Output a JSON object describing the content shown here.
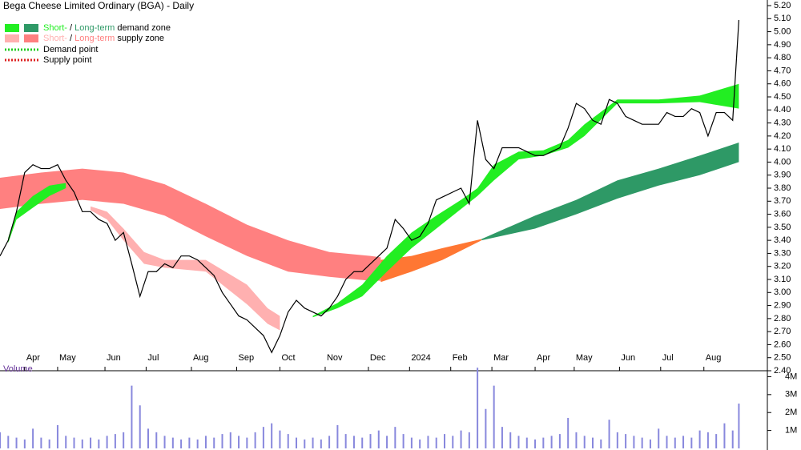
{
  "chart_data": {
    "type": "line",
    "title": "Bega Cheese Limited Ordinary (BGA) - Daily",
    "legend": {
      "demand": {
        "short": "Short-",
        "sep": " / ",
        "long": "Long-term",
        "rest": " demand zone",
        "color_short": "#22ee22",
        "color_long": "#2e9966"
      },
      "supply": {
        "short": "Short-",
        "sep": " / ",
        "long": "Long-term",
        "rest": " supply zone",
        "color_short": "#ffb0b0",
        "color_long": "#ff8080"
      },
      "demand_point": {
        "label": "Demand point",
        "color": "#22cc22"
      },
      "supply_point": {
        "label": "Supply point",
        "color": "#dd2222"
      }
    },
    "xlim": [
      0,
      360
    ],
    "xticks": [
      {
        "value": 12,
        "label": "Apr"
      },
      {
        "value": 28,
        "label": "May"
      },
      {
        "value": 51,
        "label": "Jun"
      },
      {
        "value": 71,
        "label": "Jul"
      },
      {
        "value": 93,
        "label": "Aug"
      },
      {
        "value": 115,
        "label": "Sep"
      },
      {
        "value": 136,
        "label": "Oct"
      },
      {
        "value": 158,
        "label": "Nov"
      },
      {
        "value": 179,
        "label": "Dec"
      },
      {
        "value": 199,
        "label": "2024"
      },
      {
        "value": 219,
        "label": "Feb"
      },
      {
        "value": 239,
        "label": "Mar"
      },
      {
        "value": 260,
        "label": "Apr"
      },
      {
        "value": 279,
        "label": "May"
      },
      {
        "value": 301,
        "label": "Jun"
      },
      {
        "value": 321,
        "label": "Jul"
      },
      {
        "value": 342,
        "label": "Aug"
      }
    ],
    "ylim": [
      2.4,
      5.2
    ],
    "yticks": [
      {
        "value": 2.4,
        "label": "2.40"
      },
      {
        "value": 2.5,
        "label": "2.50"
      },
      {
        "value": 2.6,
        "label": "2.60"
      },
      {
        "value": 2.7,
        "label": "2.70"
      },
      {
        "value": 2.8,
        "label": "2.80"
      },
      {
        "value": 2.9,
        "label": "2.90"
      },
      {
        "value": 3.0,
        "label": "3.00"
      },
      {
        "value": 3.1,
        "label": "3.10"
      },
      {
        "value": 3.2,
        "label": "3.20"
      },
      {
        "value": 3.3,
        "label": "3.30"
      },
      {
        "value": 3.4,
        "label": "3.40"
      },
      {
        "value": 3.5,
        "label": "3.50"
      },
      {
        "value": 3.6,
        "label": "3.60"
      },
      {
        "value": 3.7,
        "label": "3.70"
      },
      {
        "value": 3.8,
        "label": "3.80"
      },
      {
        "value": 3.9,
        "label": "3.90"
      },
      {
        "value": 4.0,
        "label": "4.00"
      },
      {
        "value": 4.1,
        "label": "4.10"
      },
      {
        "value": 4.2,
        "label": "4.20"
      },
      {
        "value": 4.3,
        "label": "4.30"
      },
      {
        "value": 4.4,
        "label": "4.40"
      },
      {
        "value": 4.5,
        "label": "4.50"
      },
      {
        "value": 4.6,
        "label": "4.60"
      },
      {
        "value": 4.7,
        "label": "4.70"
      },
      {
        "value": 4.8,
        "label": "4.80"
      },
      {
        "value": 4.9,
        "label": "4.90"
      },
      {
        "value": 5.0,
        "label": "5.00"
      },
      {
        "value": 5.1,
        "label": "5.10"
      },
      {
        "value": 5.2,
        "label": "5.20"
      }
    ],
    "x": [
      0,
      4,
      8,
      12,
      16,
      20,
      24,
      28,
      32,
      36,
      40,
      44,
      48,
      52,
      56,
      60,
      64,
      68,
      72,
      76,
      80,
      84,
      88,
      92,
      96,
      100,
      104,
      108,
      112,
      116,
      120,
      124,
      128,
      132,
      136,
      140,
      144,
      148,
      152,
      156,
      160,
      164,
      168,
      172,
      176,
      180,
      184,
      188,
      192,
      196,
      200,
      204,
      208,
      212,
      216,
      220,
      224,
      228,
      232,
      236,
      240,
      244,
      248,
      252,
      256,
      260,
      264,
      268,
      272,
      276,
      280,
      284,
      288,
      292,
      296,
      300,
      304,
      308,
      312,
      316,
      320,
      324,
      328,
      332,
      336,
      340,
      344,
      348,
      352,
      356,
      359
    ],
    "price": {
      "color": "#000000",
      "values": [
        3.28,
        3.4,
        3.62,
        3.92,
        3.98,
        3.95,
        3.95,
        3.98,
        3.86,
        3.77,
        3.62,
        3.62,
        3.56,
        3.53,
        3.4,
        3.46,
        3.22,
        2.97,
        3.16,
        3.16,
        3.22,
        3.19,
        3.28,
        3.28,
        3.25,
        3.19,
        3.13,
        3.0,
        2.91,
        2.82,
        2.79,
        2.73,
        2.67,
        2.54,
        2.67,
        2.85,
        2.94,
        2.88,
        2.85,
        2.82,
        2.88,
        2.97,
        3.1,
        3.16,
        3.16,
        3.22,
        3.28,
        3.34,
        3.56,
        3.49,
        3.4,
        3.43,
        3.53,
        3.71,
        3.74,
        3.77,
        3.8,
        3.68,
        4.32,
        4.02,
        3.95,
        4.11,
        4.11,
        4.11,
        4.08,
        4.05,
        4.05,
        4.08,
        4.11,
        4.26,
        4.45,
        4.41,
        4.32,
        4.29,
        4.48,
        4.45,
        4.35,
        4.32,
        4.29,
        4.29,
        4.29,
        4.38,
        4.35,
        4.35,
        4.41,
        4.38,
        4.2,
        4.38,
        4.38,
        4.32,
        5.09
      ]
    },
    "bands": [
      {
        "color": "#ff8080",
        "x": [
          0,
          20,
          40,
          60,
          80,
          100,
          120,
          140,
          160,
          180,
          185
        ],
        "upper": [
          3.88,
          3.92,
          3.95,
          3.92,
          3.83,
          3.68,
          3.52,
          3.4,
          3.31,
          3.28,
          3.27
        ],
        "lower": [
          3.64,
          3.68,
          3.71,
          3.68,
          3.59,
          3.43,
          3.28,
          3.16,
          3.12,
          3.09,
          3.09
        ]
      },
      {
        "color": "#ff7733",
        "x": [
          185,
          200,
          215,
          234
        ],
        "upper": [
          3.25,
          3.28,
          3.34,
          3.41
        ],
        "lower": [
          3.08,
          3.16,
          3.25,
          3.4
        ]
      },
      {
        "color": "#2e9966",
        "x": [
          234,
          260,
          280,
          300,
          320,
          340,
          359
        ],
        "upper": [
          3.41,
          3.59,
          3.71,
          3.86,
          3.95,
          4.05,
          4.15
        ],
        "lower": [
          3.4,
          3.49,
          3.6,
          3.72,
          3.82,
          3.9,
          4.0
        ]
      },
      {
        "color": "#ffb0b0",
        "x": [
          44,
          52,
          60,
          70,
          80,
          100,
          120,
          130,
          136
        ],
        "upper": [
          3.66,
          3.62,
          3.49,
          3.31,
          3.25,
          3.25,
          3.06,
          2.88,
          2.82
        ],
        "lower": [
          3.63,
          3.56,
          3.4,
          3.22,
          3.19,
          3.16,
          2.91,
          2.76,
          2.71
        ]
      },
      {
        "color": "#22ee22",
        "x": [
          4,
          8,
          16,
          24,
          32
        ],
        "upper": [
          3.42,
          3.62,
          3.74,
          3.82,
          3.84
        ],
        "lower": [
          3.38,
          3.56,
          3.65,
          3.74,
          3.8
        ]
      },
      {
        "color": "#22ee22",
        "x": [
          152,
          164,
          176,
          188,
          200,
          212,
          224,
          232,
          240,
          252,
          264,
          276,
          284,
          300,
          320,
          340,
          359
        ],
        "upper": [
          2.82,
          2.92,
          3.06,
          3.28,
          3.46,
          3.59,
          3.71,
          3.8,
          3.98,
          4.08,
          4.09,
          4.17,
          4.29,
          4.48,
          4.48,
          4.51,
          4.6
        ],
        "lower": [
          2.81,
          2.88,
          2.97,
          3.16,
          3.34,
          3.49,
          3.64,
          3.74,
          3.86,
          4.02,
          4.05,
          4.11,
          4.2,
          4.45,
          4.45,
          4.46,
          4.41
        ]
      }
    ],
    "volume": {
      "label": "Volume",
      "color": "#8888dd",
      "ylim": [
        0,
        4600000
      ],
      "yticks": [
        {
          "value": 1000000,
          "label": "1M"
        },
        {
          "value": 2000000,
          "label": "2M"
        },
        {
          "value": 3000000,
          "label": "3M"
        },
        {
          "value": 4000000,
          "label": "4M"
        }
      ],
      "values": [
        900000,
        700000,
        600000,
        500000,
        1100000,
        600000,
        500000,
        1300000,
        700000,
        600000,
        500000,
        600000,
        500000,
        700000,
        800000,
        900000,
        3500000,
        2400000,
        1100000,
        900000,
        700000,
        600000,
        500000,
        600000,
        500000,
        700000,
        600000,
        800000,
        900000,
        700000,
        600000,
        900000,
        1200000,
        1400000,
        1000000,
        800000,
        600000,
        500000,
        600000,
        500000,
        700000,
        1300000,
        800000,
        700000,
        600000,
        800000,
        1000000,
        700000,
        1200000,
        800000,
        600000,
        500000,
        700000,
        600000,
        800000,
        700000,
        1000000,
        900000,
        4500000,
        2200000,
        3500000,
        1200000,
        900000,
        700000,
        600000,
        500000,
        600000,
        700000,
        800000,
        1700000,
        900000,
        700000,
        600000,
        500000,
        1600000,
        900000,
        800000,
        700000,
        600000,
        500000,
        1100000,
        700000,
        600000,
        700000,
        600000,
        1000000,
        900000,
        800000,
        1400000,
        1000000,
        2500000
      ]
    }
  }
}
